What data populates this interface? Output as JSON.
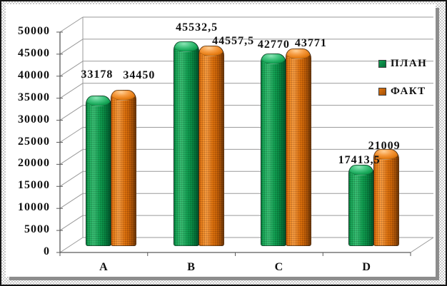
{
  "colors": {
    "plan_green": "#11a052",
    "plan_green_dark": "#046e38",
    "fact_orange": "#e0740e",
    "fact_orange_dark": "#a04f07",
    "gridline_gray": "#9a9a9a",
    "axis_gray": "#5a5a5a",
    "text_black": "#111111",
    "frame_shadow_gray": "#8d8d8d",
    "frame_border_black": "#151515"
  },
  "chart_data": {
    "type": "bar",
    "variant": "3d-cylinder-columns",
    "title": "",
    "xlabel": "",
    "ylabel": "",
    "categories": [
      "A",
      "B",
      "C",
      "D"
    ],
    "series": [
      {
        "name": "ПЛАН",
        "color": "#11a052",
        "values": [
          33178,
          45532.5,
          42770,
          17413.5
        ],
        "labels": [
          "33178",
          "45532,5",
          "42770",
          "17413,5"
        ]
      },
      {
        "name": "ФАКТ",
        "color": "#e0740e",
        "values": [
          34450,
          44557.5,
          43771,
          21009
        ],
        "labels": [
          "34450",
          "44557,5",
          "43771",
          "21009"
        ]
      }
    ],
    "ylim": [
      0,
      50000
    ],
    "ytick_step": 5000,
    "yticks": [
      "0",
      "5000",
      "10000",
      "15000",
      "20000",
      "25000",
      "30000",
      "35000",
      "40000",
      "45000",
      "50000"
    ],
    "grid": true,
    "legend_position": "right"
  }
}
